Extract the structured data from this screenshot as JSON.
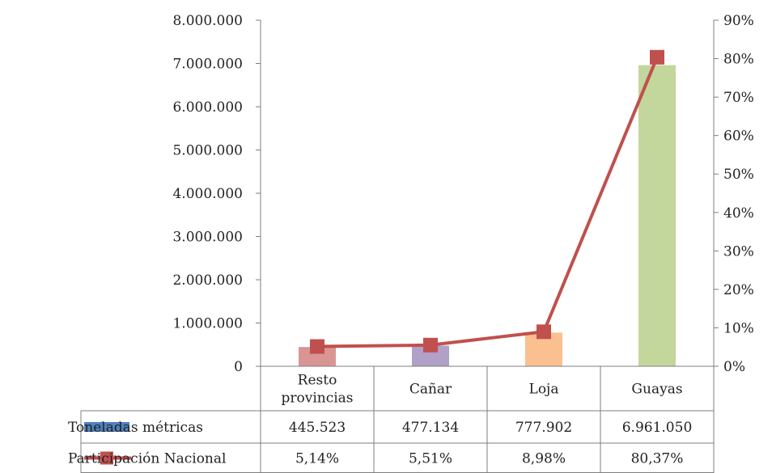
{
  "chart_data": {
    "type": "bar",
    "categories": [
      "Resto provincias",
      "Cañar",
      "Loja",
      "Guayas"
    ],
    "category_lines": [
      [
        "Resto",
        "provincias"
      ],
      [
        "Cañar"
      ],
      [
        "Loja"
      ],
      [
        "Guayas"
      ]
    ],
    "bar_colors": [
      "#d99594",
      "#b1a0c7",
      "#fac090",
      "#c3d69b"
    ],
    "line_color": "#c0504d",
    "legend_swatch_color": "#4f81bd",
    "series": [
      {
        "name": "Toneladas métricas",
        "kind": "bar",
        "axis": "left",
        "values": [
          445523,
          477134,
          777902,
          6961050
        ],
        "labels": [
          "445.523",
          "477.134",
          "777.902",
          "6.961.050"
        ]
      },
      {
        "name": "Participación Nacional",
        "kind": "line",
        "axis": "right",
        "values": [
          5.14,
          5.51,
          8.98,
          80.37
        ],
        "labels": [
          "5,14%",
          "5,51%",
          "8,98%",
          "80,37%"
        ]
      }
    ],
    "y_left": {
      "ylim": [
        0,
        8000000
      ],
      "ticks": [
        0,
        1000000,
        2000000,
        3000000,
        4000000,
        5000000,
        6000000,
        7000000,
        8000000
      ],
      "tick_labels": [
        "0",
        "1.000.000",
        "2.000.000",
        "3.000.000",
        "4.000.000",
        "5.000.000",
        "6.000.000",
        "7.000.000",
        "8.000.000"
      ]
    },
    "y_right": {
      "ylim": [
        0,
        90
      ],
      "ticks": [
        0,
        10,
        20,
        30,
        40,
        50,
        60,
        70,
        80,
        90
      ],
      "tick_labels": [
        "0%",
        "10%",
        "20%",
        "30%",
        "40%",
        "50%",
        "60%",
        "70%",
        "80%",
        "90%"
      ]
    },
    "grid": false,
    "legend": "data table"
  }
}
